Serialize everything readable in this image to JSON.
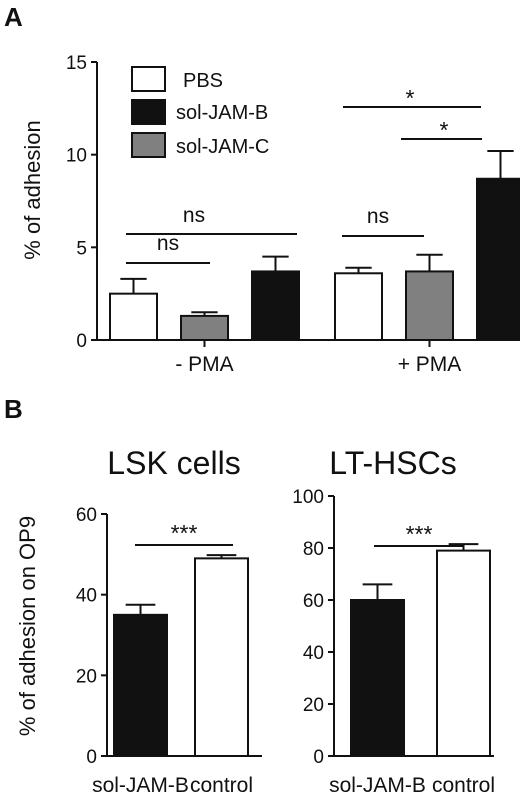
{
  "panels": {
    "a": {
      "letter": "A"
    },
    "b": {
      "letter": "B"
    }
  },
  "chart_data": [
    {
      "type": "bar",
      "panel": "A",
      "title": "",
      "xlabel": "",
      "ylabel": "% of adhesion",
      "ylim": [
        0,
        15
      ],
      "yticks": [
        "0",
        "5",
        "10",
        "15"
      ],
      "categories": [
        "- PMA",
        "+ PMA"
      ],
      "legend": {
        "position": "top-left",
        "entries": [
          "PBS",
          "sol-JAM-B",
          "sol-JAM-C"
        ]
      },
      "series": [
        {
          "name": "PBS",
          "color": "#ffffff",
          "values": [
            2.5,
            3.6
          ],
          "errors": [
            0.8,
            0.3
          ]
        },
        {
          "name": "sol-JAM-C",
          "color": "#808080",
          "values": [
            1.3,
            3.7
          ],
          "errors": [
            0.2,
            0.9
          ]
        },
        {
          "name": "sol-JAM-B",
          "color": "#111111",
          "values": [
            3.7,
            8.7
          ],
          "errors": [
            0.8,
            1.5
          ]
        }
      ],
      "significance": [
        "ns",
        "ns",
        "ns",
        "*",
        "*"
      ]
    },
    {
      "type": "bar",
      "panel": "B",
      "title": "LSK cells",
      "ylabel": "% of adhesion on OP9",
      "ylim": [
        0,
        60
      ],
      "yticks": [
        "0",
        "20",
        "40",
        "60"
      ],
      "categories": [
        "sol-JAM-B",
        "control"
      ],
      "values": [
        35,
        49
      ],
      "errors": [
        2.5,
        0.8
      ],
      "colors": [
        "#111111",
        "#ffffff"
      ],
      "significance": "***"
    },
    {
      "type": "bar",
      "panel": "B",
      "title": "LT-HSCs",
      "ylabel": "",
      "ylim": [
        0,
        100
      ],
      "yticks": [
        "0",
        "20",
        "40",
        "60",
        "80",
        "100"
      ],
      "categories": [
        "sol-JAM-B",
        "control"
      ],
      "values": [
        60,
        79
      ],
      "errors": [
        6,
        2.5
      ],
      "colors": [
        "#111111",
        "#ffffff"
      ],
      "significance": "***"
    }
  ]
}
